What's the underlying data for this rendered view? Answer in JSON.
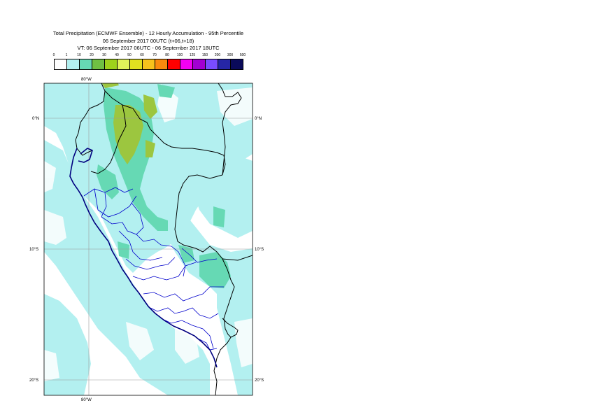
{
  "header": {
    "title_line1": "Total Precipitation (ECMWF Ensemble) - 12 Hourly Accumulation - 95th Percentile",
    "title_line2": "06 September 2017 00UTC (t+06,t+18)",
    "title_line3": "VT: 06 September 2017 06UTC - 06 September 2017 18UTC"
  },
  "legend": {
    "ticks": [
      "0",
      "1",
      "10",
      "20",
      "30",
      "40",
      "50",
      "60",
      "70",
      "80",
      "100",
      "125",
      "150",
      "200",
      "300",
      "500"
    ],
    "colors": [
      "#ffffff",
      "#b3f0f0",
      "#66d9b4",
      "#6fc043",
      "#9ed11c",
      "#e0f25a",
      "#e0e020",
      "#f6c21c",
      "#f98a0e",
      "#ff0000",
      "#f200f2",
      "#a200d2",
      "#7a4cff",
      "#2626a6",
      "#0a0a5a"
    ]
  },
  "map": {
    "lon_labels": [
      "80°W",
      "80°W"
    ],
    "lat_labels": [
      "0°N",
      "10°S",
      "20°S",
      "0°N",
      "10°S",
      "20°S"
    ],
    "precip_colors": {
      "light": "#b3f0f0",
      "medium": "#66d9b4",
      "heavy": "#9cc63f"
    },
    "boundary_colors": {
      "country": "#000000",
      "region": "#0000cc",
      "coast": "#000080"
    }
  }
}
